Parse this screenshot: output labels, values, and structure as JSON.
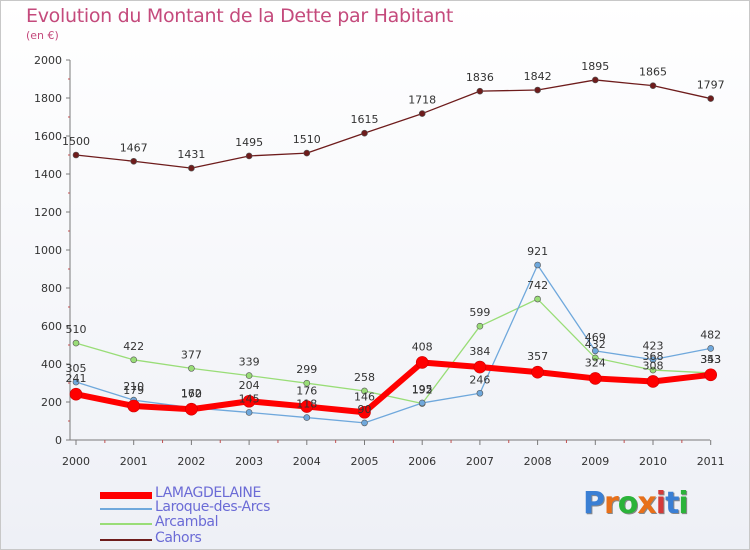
{
  "header": {
    "title": "Evolution du Montant de la Dette par Habitant",
    "subtitle": "(en €)"
  },
  "logo": {
    "text": "Proxiti",
    "colors": [
      "#3a7fd4",
      "#e8701a",
      "#2bb33a",
      "#e8701a",
      "#d43a3a",
      "#3a7fd4",
      "#2bb33a"
    ]
  },
  "chart_data": {
    "type": "line",
    "x": [
      "2000",
      "2001",
      "2002",
      "2003",
      "2004",
      "2005",
      "2006",
      "2007",
      "2008",
      "2009",
      "2010",
      "2011"
    ],
    "ylim": [
      0,
      2000
    ],
    "yticks": [
      0,
      200,
      400,
      600,
      800,
      1000,
      1200,
      1400,
      1600,
      1800,
      2000
    ],
    "grid": false,
    "legend": "bottom-left",
    "series": [
      {
        "name": "Cahors",
        "color": "#6e1c1c",
        "values": [
          1500,
          1467,
          1431,
          1495,
          1510,
          1615,
          1718,
          1836,
          1842,
          1895,
          1865,
          1797
        ],
        "labels": [
          1500,
          1467,
          1431,
          1495,
          1510,
          1615,
          1718,
          1836,
          1842,
          1895,
          1865,
          1797
        ]
      },
      {
        "name": "Arcambal",
        "color": "#99dd77",
        "values": [
          510,
          422,
          377,
          339,
          299,
          258,
          192,
          599,
          742,
          432,
          368,
          353
        ],
        "labels": [
          510,
          422,
          377,
          339,
          299,
          258,
          192,
          599,
          742,
          432,
          368,
          353
        ]
      },
      {
        "name": "Laroque-des-Arcs",
        "color": "#6fa8dc",
        "values": [
          305,
          210,
          170,
          145,
          118,
          90,
          195,
          246,
          921,
          469,
          423,
          482
        ],
        "labels": [
          305,
          210,
          170,
          145,
          118,
          90,
          195,
          246,
          921,
          469,
          423,
          482
        ]
      },
      {
        "name": "LAMAGDELAINE",
        "color": "#ff0000",
        "values": [
          241,
          179,
          162,
          204,
          176,
          146,
          408,
          384,
          357,
          324,
          308,
          343
        ],
        "labels": [
          241,
          179,
          162,
          204,
          176,
          146,
          408,
          384,
          357,
          324,
          308,
          343
        ]
      }
    ],
    "legend_order": [
      "LAMAGDELAINE",
      "Laroque-des-Arcs",
      "Arcambal",
      "Cahors"
    ]
  }
}
